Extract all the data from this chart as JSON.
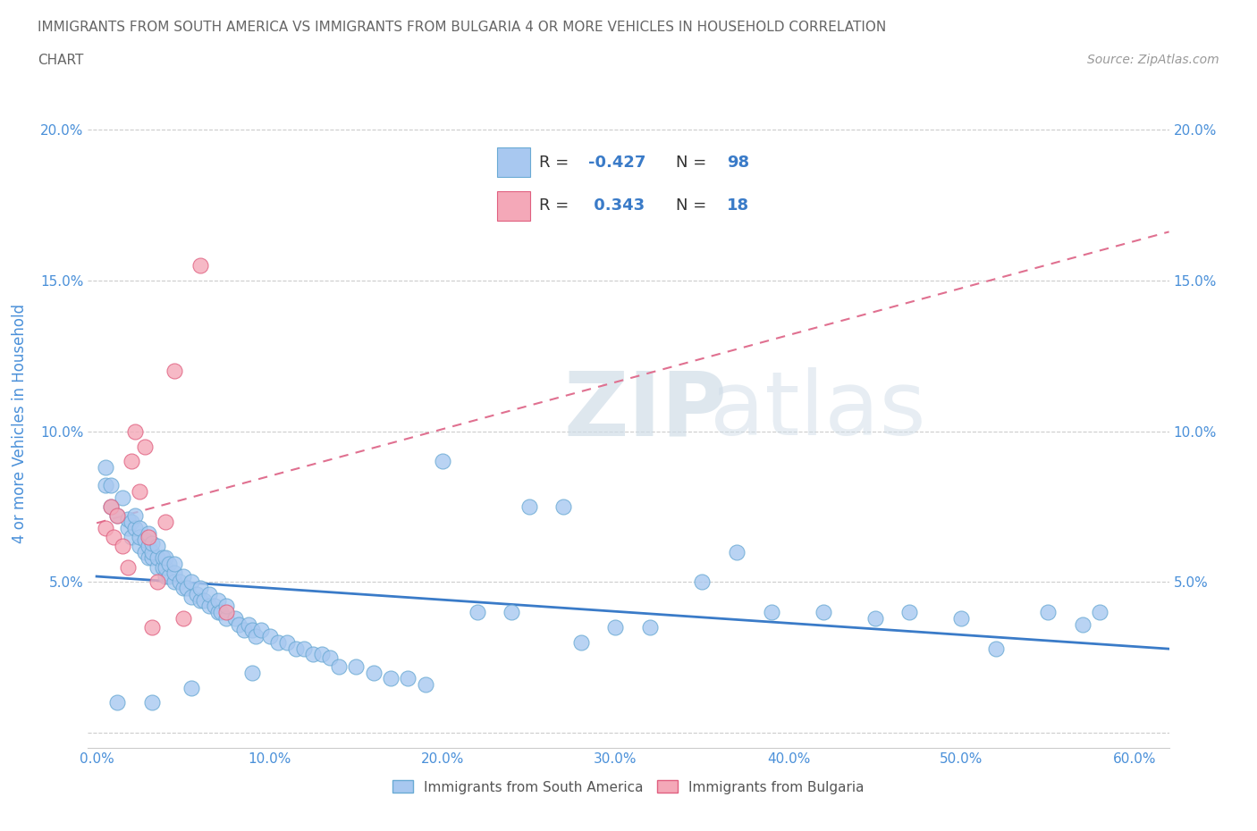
{
  "title_line1": "IMMIGRANTS FROM SOUTH AMERICA VS IMMIGRANTS FROM BULGARIA 4 OR MORE VEHICLES IN HOUSEHOLD CORRELATION",
  "title_line2": "CHART",
  "source_text": "Source: ZipAtlas.com",
  "ylabel": "4 or more Vehicles in Household",
  "xlim": [
    -0.005,
    0.62
  ],
  "ylim": [
    -0.005,
    0.21
  ],
  "xticks": [
    0.0,
    0.1,
    0.2,
    0.3,
    0.4,
    0.5,
    0.6
  ],
  "xticklabels": [
    "0.0%",
    "10.0%",
    "20.0%",
    "30.0%",
    "40.0%",
    "50.0%",
    "60.0%"
  ],
  "yticks_left": [
    0.0,
    0.05,
    0.1,
    0.15,
    0.2
  ],
  "yticklabels_left": [
    "",
    "5.0%",
    "10.0%",
    "15.0%",
    "20.0%"
  ],
  "yticks_right": [
    0.0,
    0.05,
    0.1,
    0.15,
    0.2
  ],
  "yticklabels_right": [
    "",
    "5.0%",
    "10.0%",
    "15.0%",
    "20.0%"
  ],
  "blue_color": "#a8c8f0",
  "blue_edge": "#6aaad4",
  "pink_color": "#f4a8b8",
  "pink_edge": "#e06080",
  "blue_line_color": "#3a7bc8",
  "pink_line_color": "#e07090",
  "R_blue": -0.427,
  "N_blue": 98,
  "R_pink": 0.343,
  "N_pink": 18,
  "legend_label_blue": "Immigrants from South America",
  "legend_label_pink": "Immigrants from Bulgaria",
  "watermark_zip": "ZIP",
  "watermark_atlas": "atlas",
  "title_color": "#666666",
  "axis_label_color": "#4a90d9",
  "tick_color": "#4a90d9",
  "grid_color": "#cccccc",
  "blue_scatter_x": [
    0.005,
    0.008,
    0.012,
    0.015,
    0.018,
    0.018,
    0.02,
    0.02,
    0.022,
    0.022,
    0.025,
    0.025,
    0.025,
    0.028,
    0.028,
    0.03,
    0.03,
    0.03,
    0.032,
    0.032,
    0.032,
    0.035,
    0.035,
    0.035,
    0.038,
    0.038,
    0.04,
    0.04,
    0.04,
    0.042,
    0.042,
    0.045,
    0.045,
    0.045,
    0.048,
    0.05,
    0.05,
    0.052,
    0.055,
    0.055,
    0.058,
    0.06,
    0.06,
    0.062,
    0.065,
    0.065,
    0.068,
    0.07,
    0.07,
    0.072,
    0.075,
    0.075,
    0.08,
    0.082,
    0.085,
    0.088,
    0.09,
    0.092,
    0.095,
    0.1,
    0.105,
    0.11,
    0.115,
    0.12,
    0.125,
    0.13,
    0.135,
    0.14,
    0.15,
    0.16,
    0.17,
    0.18,
    0.19,
    0.2,
    0.22,
    0.24,
    0.25,
    0.27,
    0.28,
    0.3,
    0.32,
    0.35,
    0.37,
    0.39,
    0.42,
    0.45,
    0.47,
    0.5,
    0.52,
    0.55,
    0.57,
    0.58,
    0.005,
    0.008,
    0.012,
    0.032,
    0.055,
    0.09
  ],
  "blue_scatter_y": [
    0.082,
    0.075,
    0.072,
    0.078,
    0.068,
    0.071,
    0.065,
    0.07,
    0.068,
    0.072,
    0.062,
    0.065,
    0.068,
    0.06,
    0.064,
    0.058,
    0.062,
    0.066,
    0.058,
    0.06,
    0.063,
    0.055,
    0.058,
    0.062,
    0.055,
    0.058,
    0.052,
    0.055,
    0.058,
    0.052,
    0.056,
    0.05,
    0.053,
    0.056,
    0.05,
    0.048,
    0.052,
    0.048,
    0.045,
    0.05,
    0.046,
    0.044,
    0.048,
    0.044,
    0.042,
    0.046,
    0.042,
    0.04,
    0.044,
    0.04,
    0.038,
    0.042,
    0.038,
    0.036,
    0.034,
    0.036,
    0.034,
    0.032,
    0.034,
    0.032,
    0.03,
    0.03,
    0.028,
    0.028,
    0.026,
    0.026,
    0.025,
    0.022,
    0.022,
    0.02,
    0.018,
    0.018,
    0.016,
    0.09,
    0.04,
    0.04,
    0.075,
    0.075,
    0.03,
    0.035,
    0.035,
    0.05,
    0.06,
    0.04,
    0.04,
    0.038,
    0.04,
    0.038,
    0.028,
    0.04,
    0.036,
    0.04,
    0.088,
    0.082,
    0.01,
    0.01,
    0.015,
    0.02
  ],
  "pink_scatter_x": [
    0.005,
    0.008,
    0.01,
    0.012,
    0.015,
    0.018,
    0.02,
    0.022,
    0.025,
    0.028,
    0.03,
    0.032,
    0.035,
    0.04,
    0.045,
    0.05,
    0.06,
    0.075
  ],
  "pink_scatter_y": [
    0.068,
    0.075,
    0.065,
    0.072,
    0.062,
    0.055,
    0.09,
    0.1,
    0.08,
    0.095,
    0.065,
    0.035,
    0.05,
    0.07,
    0.12,
    0.038,
    0.155,
    0.04
  ],
  "pink_line_x_start": 0.0,
  "pink_line_x_end": 0.62,
  "blue_line_x_start": 0.0,
  "blue_line_x_end": 0.62
}
